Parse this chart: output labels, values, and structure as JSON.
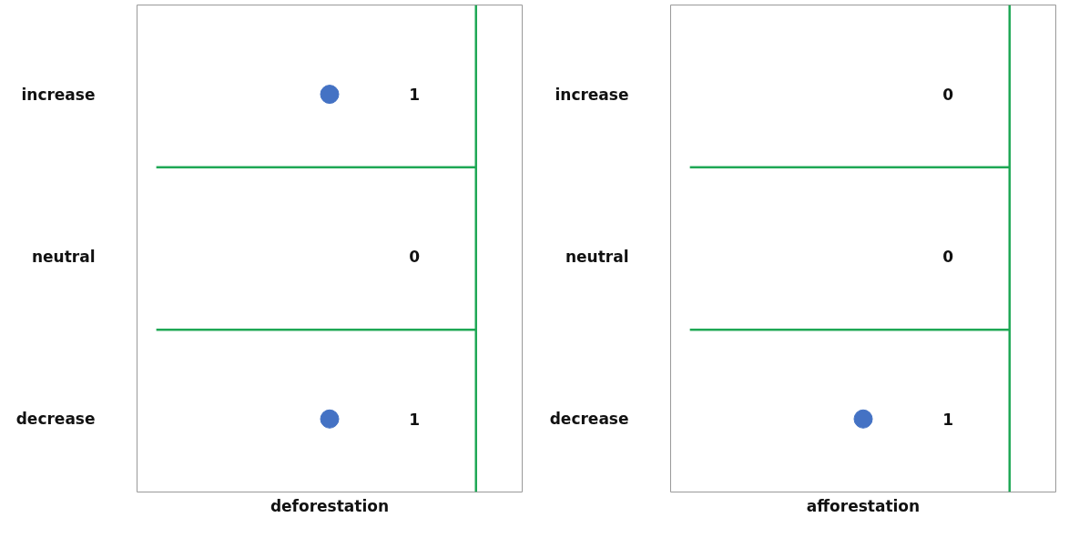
{
  "chart_data": [
    {
      "type": "other",
      "xlabel": "deforestation",
      "categories": [
        "increase",
        "neutral",
        "decrease"
      ],
      "values": [
        1,
        0,
        1
      ],
      "color": "#4472c4",
      "data_labels": true
    },
    {
      "type": "other",
      "xlabel": "afforestation",
      "categories": [
        "increase",
        "neutral",
        "decrease"
      ],
      "values": [
        0,
        0,
        1
      ],
      "color": "#4472c4",
      "data_labels": true
    }
  ]
}
